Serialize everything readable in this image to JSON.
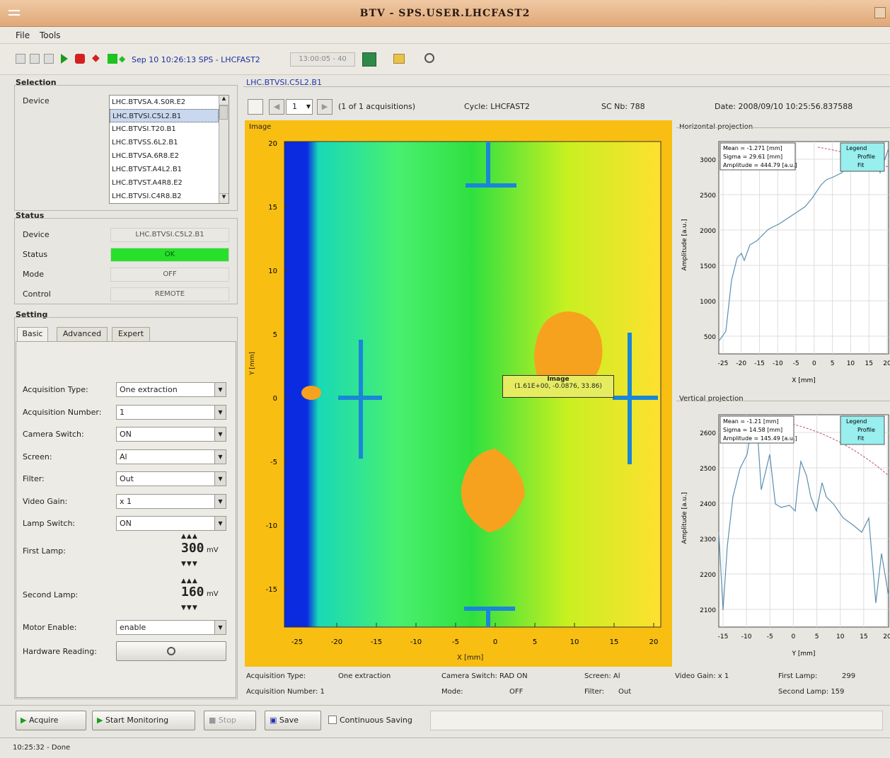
{
  "window": {
    "title": "BTV - SPS.USER.LHCFAST2"
  },
  "menu": {
    "file": "File",
    "tools": "Tools"
  },
  "toolbar": {
    "timestamp": "Sep 10 10:26:13 SPS - LHCFAST2",
    "field": "13:00:05 - 40"
  },
  "selection": {
    "title": "Selection",
    "device_label": "Device",
    "devices": [
      "LHC.BTVSA.4.S0R.E2",
      "LHC.BTVSI.C5L2.B1",
      "LHC.BTVSI.T20.B1",
      "LHC.BTVSS.6L2.B1",
      "LHC.BTVSA.6R8.E2",
      "LHC.BTVST.A4L2.B1",
      "LHC.BTVST.A4R8.E2",
      "LHC.BTVSI.C4R8.B2"
    ],
    "selected_index": 1
  },
  "status": {
    "title": "Status",
    "rows": [
      {
        "label": "Device",
        "value": "LHC.BTVSI.C5L2.B1"
      },
      {
        "label": "Status",
        "value": "OK"
      },
      {
        "label": "Mode",
        "value": "OFF"
      },
      {
        "label": "Control",
        "value": "REMOTE"
      }
    ],
    "ok_color": "#26e02a"
  },
  "setting": {
    "title": "Setting",
    "tabs": [
      "Basic",
      "Advanced",
      "Expert"
    ],
    "fields": [
      {
        "label": "Acquisition Type:",
        "value": "One extraction"
      },
      {
        "label": "Acquisition Number:",
        "value": "1"
      },
      {
        "label": "Camera Switch:",
        "value": "ON"
      },
      {
        "label": "Screen:",
        "value": "Al"
      },
      {
        "label": "Filter:",
        "value": "Out"
      },
      {
        "label": "Video Gain:",
        "value": "x 1"
      },
      {
        "label": "Lamp Switch:",
        "value": "ON"
      }
    ],
    "first_lamp": {
      "label": "First Lamp:",
      "value": "300",
      "unit": "mV"
    },
    "second_lamp": {
      "label": "Second Lamp:",
      "value": "160",
      "unit": "mV"
    },
    "motor": {
      "label": "Motor Enable:",
      "value": "enable"
    },
    "hardware": {
      "label": "Hardware Reading:"
    }
  },
  "image_panel": {
    "device_link": "LHC.BTVSI.C5L2.B1",
    "acq": "1",
    "acq_info": "(1 of 1 acquisitions)",
    "cycle": "Cycle: LHCFAST2",
    "sc": "SC Nb: 788",
    "date": "Date: 2008/09/10 10:25:56.837588",
    "title": "Image",
    "xlabel": "X [mm]",
    "ylabel": "Y [mm]",
    "xticks": [
      "-25",
      "-20",
      "-15",
      "-10",
      "-5",
      "0",
      "5",
      "10",
      "15",
      "20"
    ],
    "yticks": [
      "20",
      "15",
      "10",
      "5",
      "0",
      "-5",
      "-10",
      "-15"
    ],
    "tooltip_title": "Image",
    "tooltip_value": "(1.61E+00, -0.0876, 33.86)"
  },
  "hproj": {
    "title": "Horizontal projection",
    "stats": [
      "Mean = -1.271 [mm]",
      "Sigma = 29.61 [mm]",
      "Amplitude = 444.79 [a.u.]"
    ],
    "legend": [
      "Legend",
      "Profile",
      "Fit"
    ],
    "ylabel": "Amplitude [a.u.]",
    "xlabel": "X [mm]",
    "yticks": [
      "3000",
      "2500",
      "2000",
      "1500",
      "1000",
      "500"
    ],
    "xticks": [
      "-25",
      "-20",
      "-15",
      "-10",
      "-5",
      "0",
      "5",
      "10",
      "15",
      "20"
    ]
  },
  "vproj": {
    "title": "Vertical projection",
    "stats": [
      "Mean = -1.21 [mm]",
      "Sigma = 14.58 [mm]",
      "Amplitude = 145.49 [a.u.]"
    ],
    "legend": [
      "Legend",
      "Profile",
      "Fit"
    ],
    "ylabel": "Amplitude [a.u.]",
    "xlabel": "Y [mm]",
    "yticks": [
      "2600",
      "2500",
      "2400",
      "2300",
      "2200",
      "2100"
    ],
    "xticks": [
      "-15",
      "-10",
      "-5",
      "0",
      "5",
      "10",
      "15",
      "20"
    ]
  },
  "info": {
    "acq_type_label": "Acquisition Type:",
    "acq_type": "One extraction",
    "acq_num_label": "Acquisition Number: 1",
    "camera": "Camera Switch: RAD ON",
    "mode_label": "Mode:",
    "mode": "OFF",
    "screen": "Screen: Al",
    "filter_label": "Filter:",
    "filter": "Out",
    "video_gain": "Video Gain: x 1",
    "first_lamp_label": "First Lamp:",
    "first_lamp": "299",
    "second_lamp": "Second Lamp: 159"
  },
  "buttons": {
    "acquire": "Acquire",
    "start": "Start Monitoring",
    "stop": "Stop",
    "save": "Save",
    "continuous": "Continuous Saving"
  },
  "statusbar": {
    "text": "10:25:32 - Done"
  }
}
